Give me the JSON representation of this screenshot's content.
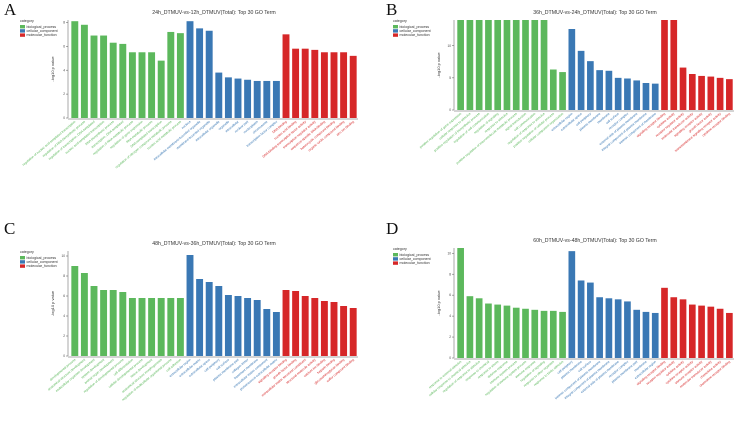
{
  "colors": {
    "biological_process": "#5cb85c",
    "cellular_component": "#3a78b4",
    "molecular_function": "#d62728"
  },
  "panels": [
    {
      "letter": "A",
      "title": "24h_DTMUV-vs-12h_DTMUV(Total): Top 30 GO Term"
    },
    {
      "letter": "B",
      "title": "36h_DTMUV-vs-24h_DTMUV(Total): Top 30 GO Term"
    },
    {
      "letter": "C",
      "title": "48h_DTMUV-vs-36h_DTMUV(Total): Top 30 GO Term"
    },
    {
      "letter": "D",
      "title": "60h_DTMUV-vs-48h_DTMUV(Total): Top 30 GO Term"
    }
  ],
  "legend": {
    "title": "category",
    "items": [
      "biological_process",
      "cellular_component",
      "molecular_function"
    ]
  },
  "ylabel": "-log10 p value",
  "chart_data": [
    {
      "type": "bar",
      "title": "24h_DTMUV-vs-12h_DTMUV(Total): Top 30 GO Term",
      "ylabel": "-log10 p value",
      "ylim": [
        0,
        8.2
      ],
      "yticks": [
        0,
        2,
        4,
        6,
        8
      ],
      "legend_position": "top-left",
      "grid": false,
      "categories": [
        "regulation of nucleic acid-templated transcription",
        "regulation of RNA biosynthetic process",
        "regulation of transcription, DNA-templated",
        "nucleic acid-templated transcription",
        "RNA biosynthetic process",
        "transcription, DNA-templated",
        "regulation of RNA metabolic process",
        "regulation of gene expression",
        "RNA metabolic process",
        "DNA-templated transcription",
        "regulation of nitrogen compound metabolic process",
        "nucleic acid metabolic process",
        "nucleus",
        "intracellular membrane-bounded organelle",
        "membrane-bounded organelle",
        "intracellular organelle",
        "organelle",
        "intracellular",
        "nuclear part",
        "nucleoplasm",
        "chromosome",
        "transcription factor complex",
        "DNA binding",
        "nucleic acid binding",
        "DNA-binding transcription factor activity",
        "transcription regulator activity",
        "sequence-specific DNA binding",
        "heterocyclic compound binding",
        "organic cyclic compound binding",
        "zinc ion binding"
      ],
      "category_group": [
        "bp",
        "bp",
        "bp",
        "bp",
        "bp",
        "bp",
        "bp",
        "bp",
        "bp",
        "bp",
        "bp",
        "bp",
        "cc",
        "cc",
        "cc",
        "cc",
        "cc",
        "cc",
        "cc",
        "cc",
        "cc",
        "cc",
        "mf",
        "mf",
        "mf",
        "mf",
        "mf",
        "mf",
        "mf",
        "mf"
      ],
      "values": [
        8.1,
        7.8,
        6.9,
        6.9,
        6.3,
        6.2,
        5.5,
        5.5,
        5.5,
        4.8,
        7.2,
        7.1,
        8.1,
        7.5,
        7.3,
        3.8,
        3.4,
        3.3,
        3.2,
        3.1,
        3.1,
        3.1,
        7.0,
        5.8,
        5.8,
        5.7,
        5.5,
        5.5,
        5.5,
        5.2
      ]
    },
    {
      "type": "bar",
      "title": "36h_DTMUV-vs-24h_DTMUV(Total): Top 30 GO Term",
      "ylabel": "-log10 p value",
      "ylim": [
        0,
        14
      ],
      "yticks": [
        0,
        5,
        10
      ],
      "legend_position": "top-left",
      "grid": false,
      "categories": [
        "positive regulation of gene expression",
        "cellular response to stimulus",
        "positive regulation of biosynthetic process",
        "regulation of cell communication",
        "regulation of signaling",
        "response to stimulus",
        "positive regulation of macromolecule metabolic process",
        "signal transduction",
        "cell communication",
        "regulation of response to stimulus",
        "positive regulation of cellular process",
        "cellular component organization",
        "extracellular region",
        "extracellular space",
        "cell periphery",
        "plasma membrane",
        "membrane",
        "cell surface",
        "receptor complex",
        "external side of plasma membrane",
        "integral component of plasma membrane",
        "intrinsic component of membrane",
        "signaling receptor binding",
        "cytokine activity",
        "receptor regulator activity",
        "molecular transducer activity",
        "signaling receptor activity",
        "growth factor activity",
        "transmembrane signaling receptor activity",
        "cytokine receptor binding"
      ],
      "category_group": [
        "bp",
        "bp",
        "bp",
        "bp",
        "bp",
        "bp",
        "bp",
        "bp",
        "bp",
        "bp",
        "bp",
        "bp",
        "cc",
        "cc",
        "cc",
        "cc",
        "cc",
        "cc",
        "cc",
        "cc",
        "cc",
        "cc",
        "mf",
        "mf",
        "mf",
        "mf",
        "mf",
        "mf",
        "mf",
        "mf"
      ],
      "values": [
        14,
        14,
        14,
        14,
        14,
        14,
        14,
        14,
        14,
        14,
        6.3,
        5.9,
        12.6,
        9.2,
        7.6,
        6.2,
        6.1,
        5.0,
        4.9,
        4.6,
        4.2,
        4.1,
        14,
        14,
        6.6,
        5.6,
        5.3,
        5.2,
        5.0,
        4.8
      ],
      "note_groups": [
        "bp",
        "bp",
        "bp",
        "bp",
        "bp",
        "bp",
        "bp",
        "bp",
        "bp",
        "bp",
        "bp",
        "bp"
      ]
    },
    {
      "type": "bar",
      "title": "48h_DTMUV-vs-36h_DTMUV(Total): Top 30 GO Term",
      "ylabel": "-log10 p value",
      "ylim": [
        0,
        10.5
      ],
      "yticks": [
        0,
        2,
        4,
        6,
        8,
        10
      ],
      "legend_position": "top-left",
      "grid": false,
      "categories": [
        "developmental process",
        "anatomical structure development",
        "multicellular organism development",
        "system development",
        "animal organ development",
        "regulation of developmental process",
        "cell differentiation",
        "cellular developmental process",
        "tissue development",
        "anatomical structure morphogenesis",
        "regulation of multicellular organismal process",
        "cell adhesion",
        "extracellular region",
        "extracellular matrix",
        "extracellular space",
        "cell periphery",
        "cell surface",
        "plasma membrane part",
        "collagen trimer",
        "basement membrane",
        "extracellular matrix component",
        "proteinaceous extracellular matrix",
        "signaling receptor binding",
        "growth factor binding",
        "extracellular matrix structural constituent",
        "structural molecule activity",
        "calcium ion binding",
        "heparin binding",
        "glycosaminoglycan binding",
        "sulfur compound binding"
      ],
      "category_group": [
        "bp",
        "bp",
        "bp",
        "bp",
        "bp",
        "bp",
        "bp",
        "bp",
        "bp",
        "bp",
        "bp",
        "bp",
        "cc",
        "cc",
        "cc",
        "cc",
        "cc",
        "cc",
        "cc",
        "cc",
        "cc",
        "cc",
        "mf",
        "mf",
        "mf",
        "mf",
        "mf",
        "mf",
        "mf",
        "mf"
      ],
      "values": [
        9.0,
        8.3,
        7.0,
        6.6,
        6.6,
        6.4,
        5.8,
        5.8,
        5.8,
        5.8,
        5.8,
        5.8,
        10.1,
        7.7,
        7.4,
        7.0,
        6.1,
        6.0,
        5.8,
        5.6,
        4.7,
        4.4,
        6.6,
        6.5,
        6.0,
        5.8,
        5.5,
        5.4,
        5.0,
        4.8
      ]
    },
    {
      "type": "bar",
      "title": "60h_DTMUV-vs-48h_DTMUV(Total): Top 30 GO Term",
      "ylabel": "-log10 p value",
      "ylim": [
        0,
        10.5
      ],
      "yticks": [
        0,
        2,
        4,
        6,
        8,
        10
      ],
      "legend_position": "top-left",
      "grid": false,
      "categories": [
        "response to external stimulus",
        "cellular response to chemical stimulus",
        "regulation of response to stimulus",
        "response to chemical",
        "response to stress",
        "defense response",
        "immune system process",
        "regulation of immune system process",
        "immune response",
        "regulation of signaling",
        "response to other organism",
        "response to biotic stimulus",
        "cell periphery",
        "plasma membrane",
        "cell surface",
        "intrinsic component of plasma membrane",
        "integral component of plasma membrane",
        "external side of plasma membrane",
        "receptor complex",
        "plasma membrane part",
        "membrane",
        "extracellular region",
        "signaling receptor binding",
        "receptor regulator activity",
        "cytokine activity",
        "cytokine receptor activity",
        "immune receptor activity",
        "molecular transducer activity",
        "chemokine activity",
        "chemokine receptor binding"
      ],
      "category_group": [
        "bp",
        "bp",
        "bp",
        "bp",
        "bp",
        "bp",
        "bp",
        "bp",
        "bp",
        "bp",
        "bp",
        "bp",
        "cc",
        "cc",
        "cc",
        "cc",
        "cc",
        "cc",
        "cc",
        "cc",
        "cc",
        "cc",
        "mf",
        "mf",
        "mf",
        "mf",
        "mf",
        "mf",
        "mf",
        "mf"
      ],
      "values": [
        10.5,
        5.9,
        5.7,
        5.2,
        5.1,
        5.0,
        4.8,
        4.7,
        4.6,
        4.5,
        4.5,
        4.4,
        10.2,
        7.4,
        7.2,
        5.8,
        5.7,
        5.6,
        5.4,
        4.6,
        4.4,
        4.3,
        6.7,
        5.8,
        5.6,
        5.1,
        5.0,
        4.9,
        4.7,
        4.3
      ]
    }
  ]
}
